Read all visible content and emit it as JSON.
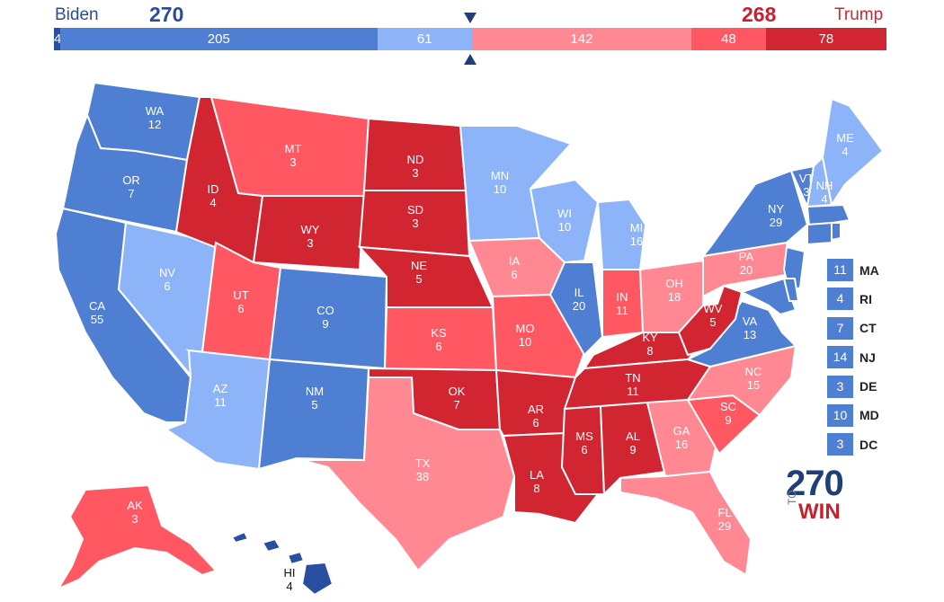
{
  "header": {
    "biden_label": "Biden",
    "biden_ev": "270",
    "trump_label": "Trump",
    "trump_ev": "268"
  },
  "bar": [
    {
      "label": "4",
      "value": 4,
      "color": "#2b4fa0"
    },
    {
      "label": "205",
      "value": 205,
      "color": "#4f7fd2"
    },
    {
      "label": "61",
      "value": 61,
      "color": "#8db4f8"
    },
    {
      "label": "142",
      "value": 142,
      "color": "#ff8893"
    },
    {
      "label": "48",
      "value": 48,
      "color": "#ff5863"
    },
    {
      "label": "78",
      "value": 78,
      "color": "#d22532"
    }
  ],
  "colors": {
    "safe_d": "#4f7fd2",
    "likely_d": "#8db4f8",
    "tilt_d": "#2b4fa0",
    "likely_r": "#ff8893",
    "lean_r": "#ff5863",
    "safe_r": "#d22532"
  },
  "states": {
    "WA": {
      "abbr": "WA",
      "ev": "12"
    },
    "OR": {
      "abbr": "OR",
      "ev": "7"
    },
    "CA": {
      "abbr": "CA",
      "ev": "55"
    },
    "NV": {
      "abbr": "NV",
      "ev": "6"
    },
    "ID": {
      "abbr": "ID",
      "ev": "4"
    },
    "MT": {
      "abbr": "MT",
      "ev": "3"
    },
    "WY": {
      "abbr": "WY",
      "ev": "3"
    },
    "UT": {
      "abbr": "UT",
      "ev": "6"
    },
    "AZ": {
      "abbr": "AZ",
      "ev": "11"
    },
    "CO": {
      "abbr": "CO",
      "ev": "9"
    },
    "NM": {
      "abbr": "NM",
      "ev": "5"
    },
    "ND": {
      "abbr": "ND",
      "ev": "3"
    },
    "SD": {
      "abbr": "SD",
      "ev": "3"
    },
    "NE": {
      "abbr": "NE",
      "ev": "5"
    },
    "KS": {
      "abbr": "KS",
      "ev": "6"
    },
    "OK": {
      "abbr": "OK",
      "ev": "7"
    },
    "TX": {
      "abbr": "TX",
      "ev": "38"
    },
    "MN": {
      "abbr": "MN",
      "ev": "10"
    },
    "IA": {
      "abbr": "IA",
      "ev": "6"
    },
    "MO": {
      "abbr": "MO",
      "ev": "10"
    },
    "AR": {
      "abbr": "AR",
      "ev": "6"
    },
    "LA": {
      "abbr": "LA",
      "ev": "8"
    },
    "WI": {
      "abbr": "WI",
      "ev": "10"
    },
    "IL": {
      "abbr": "IL",
      "ev": "20"
    },
    "MI": {
      "abbr": "MI",
      "ev": "16"
    },
    "IN": {
      "abbr": "IN",
      "ev": "11"
    },
    "OH": {
      "abbr": "OH",
      "ev": "18"
    },
    "KY": {
      "abbr": "KY",
      "ev": "8"
    },
    "TN": {
      "abbr": "TN",
      "ev": "11"
    },
    "MS": {
      "abbr": "MS",
      "ev": "6"
    },
    "AL": {
      "abbr": "AL",
      "ev": "9"
    },
    "GA": {
      "abbr": "GA",
      "ev": "16"
    },
    "FL": {
      "abbr": "FL",
      "ev": "29"
    },
    "SC": {
      "abbr": "SC",
      "ev": "9"
    },
    "NC": {
      "abbr": "NC",
      "ev": "15"
    },
    "VA": {
      "abbr": "VA",
      "ev": "13"
    },
    "WV": {
      "abbr": "WV",
      "ev": "5"
    },
    "PA": {
      "abbr": "PA",
      "ev": "20"
    },
    "NY": {
      "abbr": "NY",
      "ev": "29"
    },
    "VT": {
      "abbr": "VT",
      "ev": "3"
    },
    "NH": {
      "abbr": "NH",
      "ev": "4"
    },
    "ME": {
      "abbr": "ME",
      "ev": "4"
    },
    "AK": {
      "abbr": "AK",
      "ev": "3"
    },
    "HI": {
      "abbr": "HI",
      "ev": "4"
    }
  },
  "small_states": [
    {
      "ev": "11",
      "abbr": "MA"
    },
    {
      "ev": "4",
      "abbr": "RI"
    },
    {
      "ev": "7",
      "abbr": "CT"
    },
    {
      "ev": "14",
      "abbr": "NJ"
    },
    {
      "ev": "3",
      "abbr": "DE"
    },
    {
      "ev": "10",
      "abbr": "MD"
    },
    {
      "ev": "3",
      "abbr": "DC"
    }
  ],
  "logo": {
    "number": "270",
    "to": "TO",
    "win": "WIN"
  }
}
